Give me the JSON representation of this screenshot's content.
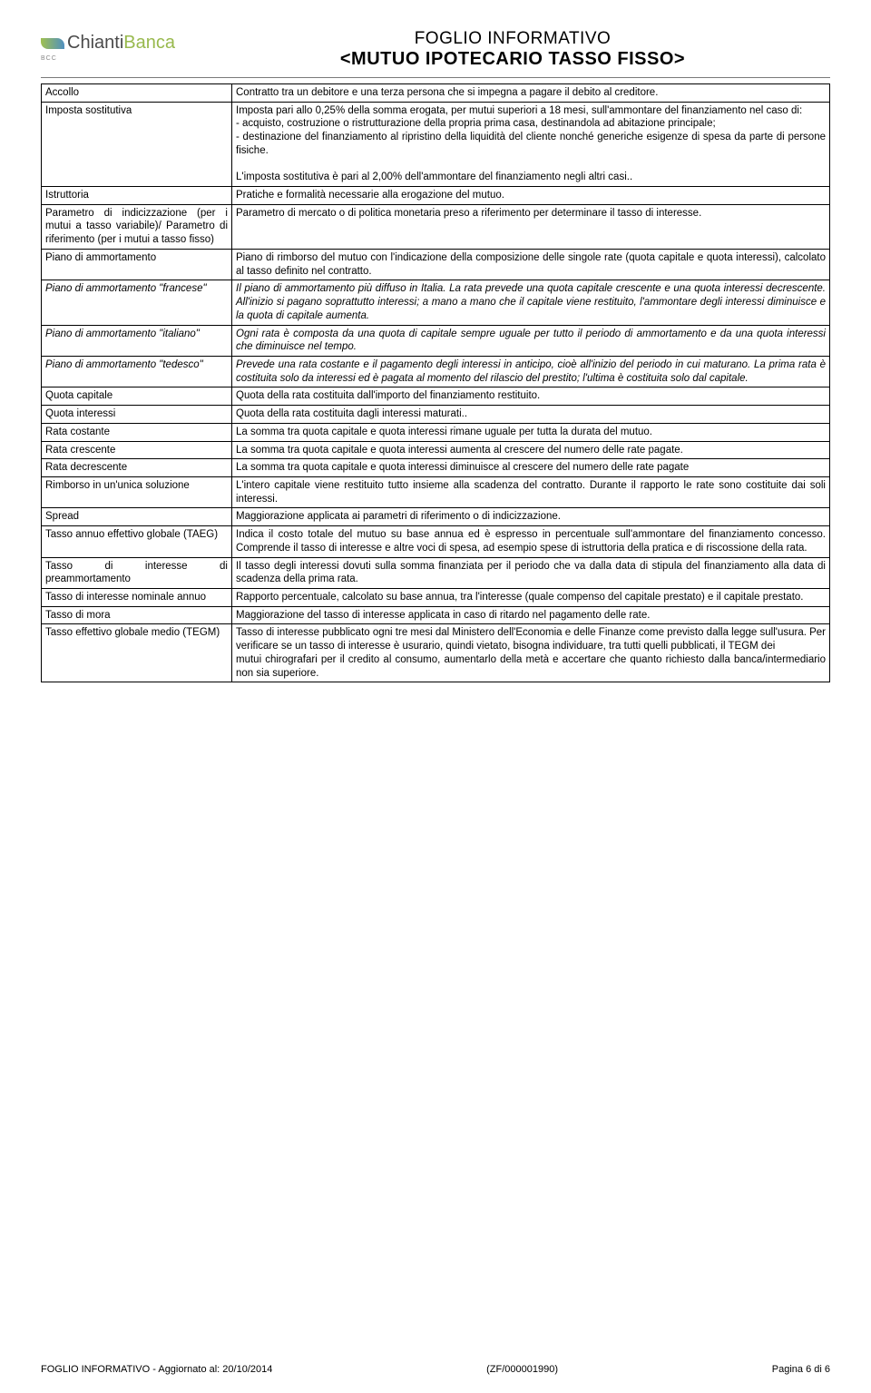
{
  "header": {
    "logo_name": "ChiantiBanca",
    "logo_sub": "BCC",
    "title_line1": "FOGLIO INFORMATIVO",
    "title_line2": "<MUTUO IPOTECARIO TASSO FISSO>"
  },
  "rows": [
    {
      "term": "Accollo",
      "def": "Contratto tra un debitore e una terza persona che si impegna a pagare il debito al creditore.",
      "italic": false
    },
    {
      "term": "Imposta sostitutiva",
      "def": "Imposta pari allo 0,25% della somma erogata, per mutui superiori a 18 mesi, sull'ammontare del finanziamento nel caso di:\n- acquisto, costruzione o ristrutturazione della propria prima casa, destinandola ad abitazione principale;\n- destinazione del finanziamento al ripristino della liquidità del cliente nonché generiche esigenze di spesa da parte di persone fisiche.\n\nL'imposta sostitutiva è pari al 2,00% dell'ammontare del finanziamento negli altri casi..",
      "italic": false
    },
    {
      "term": "Istruttoria",
      "def": "Pratiche e formalità necessarie alla erogazione del mutuo.",
      "italic": false
    },
    {
      "term": "Parametro di indicizzazione (per i mutui a tasso variabile)/ Parametro di riferimento (per i mutui a tasso fisso)",
      "def": "Parametro di mercato o di politica monetaria preso a riferimento per determinare il tasso di interesse.",
      "italic": false
    },
    {
      "term": "Piano di ammortamento",
      "def": "Piano di rimborso del mutuo con l'indicazione della composizione delle singole rate (quota capitale e quota interessi), calcolato al tasso definito nel contratto.",
      "italic": false
    },
    {
      "term": "Piano di ammortamento \"francese\"",
      "def": "Il piano di ammortamento più diffuso in Italia. La rata prevede una quota capitale crescente e una quota interessi decrescente. All'inizio si pagano soprattutto interessi; a mano a mano che il capitale viene restituito, l'ammontare degli interessi diminuisce e la quota di capitale aumenta.",
      "italic": true
    },
    {
      "term": "Piano di ammortamento \"italiano\"",
      "def": "Ogni rata è composta da una quota di capitale sempre uguale per tutto il periodo di ammortamento e da una quota interessi che diminuisce nel tempo.",
      "italic": true
    },
    {
      "term": "Piano di ammortamento \"tedesco\"",
      "def": "Prevede una rata costante e il pagamento degli interessi in anticipo, cioè all'inizio del periodo in cui maturano. La prima rata è  costituita solo da interessi ed è pagata al momento del rilascio del prestito; l'ultima è costituita solo dal capitale.",
      "italic": true
    },
    {
      "term": "Quota capitale",
      "def": "Quota della rata costituita dall'importo del finanziamento restituito.",
      "italic": false
    },
    {
      "term": "Quota interessi",
      "def": "Quota della rata costituita dagli interessi maturati..",
      "italic": false
    },
    {
      "term": "Rata costante",
      "def": "La somma tra quota capitale e quota interessi rimane uguale per tutta la durata del mutuo.",
      "italic": false
    },
    {
      "term": "Rata crescente",
      "def": "La somma tra quota capitale e quota interessi aumenta al crescere del numero delle rate pagate.",
      "italic": false
    },
    {
      "term": "Rata decrescente",
      "def": "La somma tra quota capitale e quota interessi diminuisce al crescere del numero delle rate pagate",
      "italic": false
    },
    {
      "term": "Rimborso in un'unica soluzione",
      "def": "L'intero capitale viene restituito tutto insieme alla scadenza del contratto. Durante il rapporto le rate sono costituite dai soli interessi.",
      "italic": false
    },
    {
      "term": "Spread",
      "def": "Maggiorazione applicata ai parametri di riferimento o di indicizzazione.",
      "italic": false
    },
    {
      "term": "Tasso annuo effettivo globale (TAEG)",
      "def": "Indica il costo totale del mutuo su base annua ed è espresso in percentuale sull'ammontare del finanziamento concesso. Comprende il tasso di interesse e altre voci di spesa, ad esempio spese di istruttoria della pratica e di riscossione della rata.",
      "italic": false
    },
    {
      "term": "Tasso di interesse di preammortamento",
      "def": "Il tasso degli interessi dovuti sulla somma finanziata per il periodo che va dalla data di stipula del finanziamento alla data di scadenza della prima rata.",
      "italic": false
    },
    {
      "term": "Tasso di interesse nominale annuo",
      "def": "Rapporto percentuale, calcolato su base annua, tra l'interesse (quale compenso del capitale prestato) e il capitale prestato.",
      "italic": false
    },
    {
      "term": "Tasso di mora",
      "def": "Maggiorazione del tasso di interesse applicata in caso di ritardo nel pagamento delle rate.",
      "italic": false
    },
    {
      "term": "Tasso effettivo globale medio (TEGM)",
      "def": "Tasso di interesse pubblicato ogni tre mesi dal Ministero dell'Economia e delle Finanze come previsto dalla legge sull'usura. Per verificare se un tasso di interesse è usurario, quindi vietato, bisogna individuare, tra tutti quelli pubblicati, il TEGM dei\nmutui chirografari per il credito al consumo, aumentarlo della metà e accertare che quanto richiesto dalla banca/intermediario non sia superiore.",
      "italic": false
    }
  ],
  "footer": {
    "left": "FOGLIO INFORMATIVO - Aggiornato al: 20/10/2014",
    "center": "(ZF/000001990)",
    "right": "Pagina 6 di 6"
  }
}
